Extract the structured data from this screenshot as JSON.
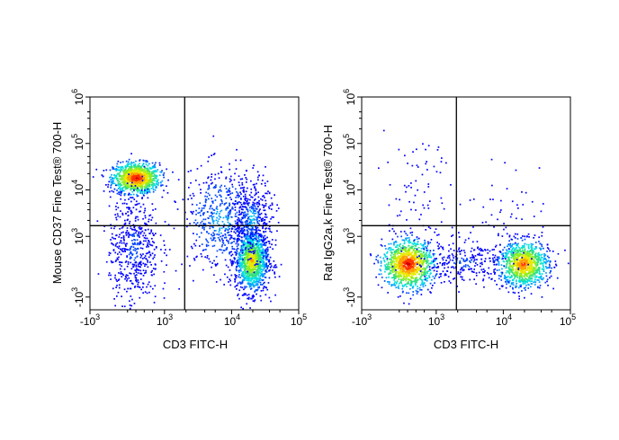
{
  "chart_data": [
    {
      "type": "scatter",
      "title": "",
      "xlabel": "CD3 FITC-H",
      "ylabel": "Mouse CD37 Fine Test® 700-H",
      "x_ticks": [
        {
          "base": "-10",
          "exp": "3"
        },
        {
          "base": "10",
          "exp": "3"
        },
        {
          "base": "10",
          "exp": "4"
        },
        {
          "base": "10",
          "exp": "5"
        }
      ],
      "y_ticks": [
        {
          "base": "-10",
          "exp": "3"
        },
        {
          "base": "10",
          "exp": "3"
        },
        {
          "base": "10",
          "exp": "4"
        },
        {
          "base": "10",
          "exp": "5"
        },
        {
          "base": "10",
          "exp": "6"
        }
      ],
      "quadrant_gate": {
        "x": 2000,
        "y": 1700
      },
      "populations": [
        {
          "name": "CD37+ CD3-",
          "x_center": 350,
          "y_center": 18000,
          "relative_size": 1.0
        },
        {
          "name": "CD37low CD3+",
          "x_center": 20000,
          "y_center": 350,
          "relative_size": 1.0
        },
        {
          "name": "scatter",
          "x_center": 300,
          "y_center": 700,
          "relative_size": 0.6
        }
      ]
    },
    {
      "type": "scatter",
      "title": "",
      "xlabel": "CD3 FITC-H",
      "ylabel": "Rat IgG2a,k Fine Test® 700-H",
      "x_ticks": [
        {
          "base": "-10",
          "exp": "3"
        },
        {
          "base": "10",
          "exp": "3"
        },
        {
          "base": "10",
          "exp": "4"
        },
        {
          "base": "10",
          "exp": "5"
        }
      ],
      "y_ticks": [
        {
          "base": "-10",
          "exp": "3"
        },
        {
          "base": "10",
          "exp": "3"
        },
        {
          "base": "10",
          "exp": "4"
        },
        {
          "base": "10",
          "exp": "5"
        },
        {
          "base": "10",
          "exp": "6"
        }
      ],
      "quadrant_gate": {
        "x": 2000,
        "y": 1700
      },
      "populations": [
        {
          "name": "CD3- isotype",
          "x_center": 350,
          "y_center": 250,
          "relative_size": 1.0
        },
        {
          "name": "CD3+ isotype",
          "x_center": 20000,
          "y_center": 250,
          "relative_size": 1.0
        }
      ]
    }
  ]
}
